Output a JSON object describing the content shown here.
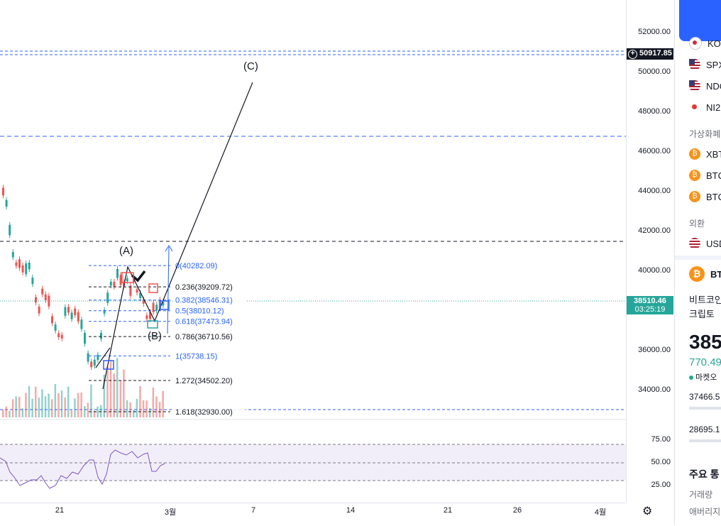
{
  "price_scale": {
    "labels": [
      "52000.00",
      "50000.00",
      "48000.00",
      "46000.00",
      "44000.00",
      "42000.00",
      "40000.00",
      "36000.00",
      "34000.00"
    ],
    "alert_price": "50917.85",
    "current_price": "38510.46",
    "countdown": "03:25:19"
  },
  "rsi_scale": {
    "labels": [
      "75.00",
      "50.00",
      "25.00"
    ]
  },
  "time_axis": {
    "labels": [
      "21",
      "3월",
      "7",
      "14",
      "21",
      "26",
      "4월"
    ]
  },
  "wave_labels": {
    "a": "(A)",
    "b": "(B)",
    "c": "(C)"
  },
  "fib_levels": [
    {
      "ratio": "0",
      "price": "40282.09",
      "label": "0(40282.09)"
    },
    {
      "ratio": "0.236",
      "price": "39209.72",
      "label": "0.236(39209.72)"
    },
    {
      "ratio": "0.382",
      "price": "38546.31",
      "label": "0.382(38546.31)"
    },
    {
      "ratio": "0.5",
      "price": "38010.12",
      "label": "0.5(38010.12)"
    },
    {
      "ratio": "0.618",
      "price": "37473.94",
      "label": "0.618(37473.94)"
    },
    {
      "ratio": "0.786",
      "price": "36710.56",
      "label": "0.786(36710.56)"
    },
    {
      "ratio": "1",
      "price": "35738.15",
      "label": "1(35738.15)"
    },
    {
      "ratio": "1.272",
      "price": "34502.20",
      "label": "1.272(34502.20)"
    },
    {
      "ratio": "1.618",
      "price": "32930.00",
      "label": "1.618(32930.00)"
    }
  ],
  "watchlist": {
    "items_top": [
      {
        "symbol": "KO",
        "flag": "kr"
      },
      {
        "symbol": "SPX",
        "flag": "us"
      },
      {
        "symbol": "NDQ",
        "flag": "us"
      },
      {
        "symbol": "NI2",
        "flag": "jp"
      }
    ],
    "crypto_title": "가상화폐",
    "crypto_items": [
      {
        "symbol": "XBT"
      },
      {
        "symbol": "BTC"
      },
      {
        "symbol": "BTC"
      }
    ],
    "fx_title": "외환",
    "fx_items": [
      {
        "symbol": "USD"
      }
    ]
  },
  "details": {
    "symbol": "BT",
    "name": "비트코인",
    "type": "크립토",
    "price": "385",
    "change": "770.49",
    "market_status": "마켓오",
    "high": "37466.5",
    "low": "28695.1",
    "section_title": "주요 통",
    "volume_label": "거래량",
    "avg_label": "애버리지"
  },
  "colors": {
    "up": "#26a69a",
    "down": "#ef5350",
    "fib": "#2962ff",
    "accent": "#2962ff"
  }
}
